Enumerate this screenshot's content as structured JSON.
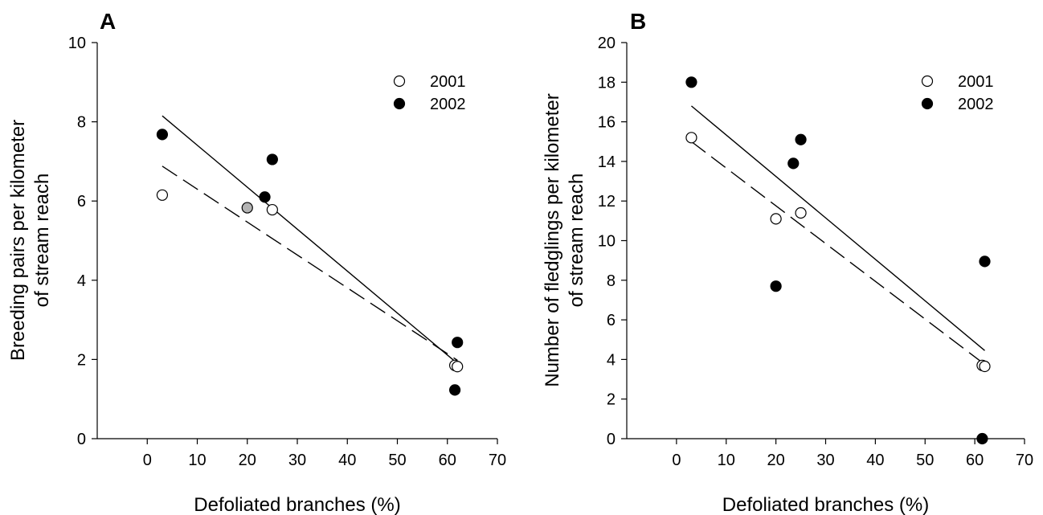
{
  "chart_data": [
    {
      "panel": "A",
      "type": "scatter",
      "xlabel": "Defoliated branches (%)",
      "ylabel_lines": [
        "Breeding pairs per kilometer",
        "of stream reach"
      ],
      "xlim": [
        -10,
        70
      ],
      "ylim": [
        0,
        10
      ],
      "xticks": [
        0,
        10,
        20,
        30,
        40,
        50,
        60,
        70
      ],
      "yticks": [
        0,
        2,
        4,
        6,
        8,
        10
      ],
      "legend_position": "top-right",
      "series": [
        {
          "name": "2001",
          "marker": "open-circle",
          "points": [
            [
              3,
              6.15
            ],
            [
              25,
              5.78
            ],
            [
              61.5,
              1.85
            ],
            [
              62,
              1.82
            ]
          ],
          "fit": {
            "style": "dashed",
            "from": [
              3,
              6.88
            ],
            "to": [
              62,
              1.98
            ]
          }
        },
        {
          "name": "2002",
          "marker": "filled-circle",
          "points": [
            [
              3,
              7.68
            ],
            [
              23.5,
              6.1
            ],
            [
              25,
              7.05
            ],
            [
              62,
              2.43
            ],
            [
              61.5,
              1.23
            ]
          ],
          "fit": {
            "style": "solid",
            "from": [
              3,
              8.15
            ],
            "to": [
              62,
              1.9
            ]
          }
        }
      ],
      "extra_points": [
        {
          "marker": "gray-circle",
          "x": 20,
          "y": 5.83
        }
      ]
    },
    {
      "panel": "B",
      "type": "scatter",
      "xlabel": "Defoliated branches (%)",
      "ylabel_lines": [
        "Number of fledglings per kilometer",
        "of stream reach"
      ],
      "xlim": [
        -10,
        70
      ],
      "ylim": [
        0,
        20
      ],
      "xticks": [
        0,
        10,
        20,
        30,
        40,
        50,
        60,
        70
      ],
      "yticks": [
        0,
        2,
        4,
        6,
        8,
        10,
        12,
        14,
        16,
        18,
        20
      ],
      "legend_position": "top-right",
      "series": [
        {
          "name": "2001",
          "marker": "open-circle",
          "points": [
            [
              3,
              15.2
            ],
            [
              20,
              11.1
            ],
            [
              25,
              11.4
            ],
            [
              61.5,
              3.7
            ],
            [
              62,
              3.65
            ]
          ],
          "fit": {
            "style": "dashed",
            "from": [
              3,
              15.0
            ],
            "to": [
              62,
              3.75
            ]
          }
        },
        {
          "name": "2002",
          "marker": "filled-circle",
          "points": [
            [
              3,
              18.0
            ],
            [
              23.5,
              13.9
            ],
            [
              25,
              15.1
            ],
            [
              20,
              7.7
            ],
            [
              62,
              8.95
            ],
            [
              61.5,
              0.0
            ]
          ],
          "fit": {
            "style": "solid",
            "from": [
              3,
              16.8
            ],
            "to": [
              62,
              4.45
            ]
          }
        }
      ]
    }
  ]
}
